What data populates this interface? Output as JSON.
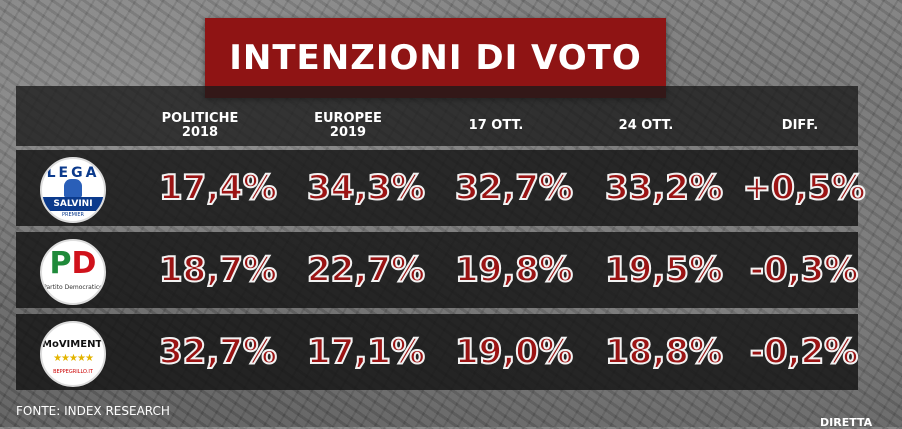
{
  "title": "INTENZIONI DI VOTO",
  "columns": [
    {
      "line1": "POLITICHE",
      "line2": "2018"
    },
    {
      "line1": "EUROPEE",
      "line2": "2019"
    },
    {
      "line1": "17 OTT.",
      "line2": ""
    },
    {
      "line1": "24 OTT.",
      "line2": ""
    },
    {
      "line1": "DIFF.",
      "line2": ""
    }
  ],
  "rows": [
    {
      "party_logo": {
        "icon": "lega-salvini-logo",
        "text": "LEGA",
        "band": "SALVINI",
        "sub": "PREMIER"
      },
      "values": [
        "17,4%",
        "34,3%",
        "32,7%",
        "33,2%",
        "+0,5%"
      ]
    },
    {
      "party_logo": {
        "icon": "pd-logo",
        "text_p": "P",
        "text_d": "D",
        "sub": "Partito Democratico"
      },
      "values": [
        "18,7%",
        "22,7%",
        "19,8%",
        "19,5%",
        "-0,3%"
      ]
    },
    {
      "party_logo": {
        "icon": "movimento-5-stelle-logo",
        "text": "MoVIMENTO",
        "stars": "★★★★★",
        "sub": "BEPPEGRILLO.IT"
      },
      "values": [
        "32,7%",
        "17,1%",
        "19,0%",
        "18,8%",
        "-0,2%"
      ]
    }
  ],
  "source": "FONTE: INDEX RESEARCH",
  "corner_label": "DIRETTA",
  "colors": {
    "title_bg": "#8f1414",
    "value_fill": "#9b1414",
    "value_outline": "#f2f2f2"
  }
}
